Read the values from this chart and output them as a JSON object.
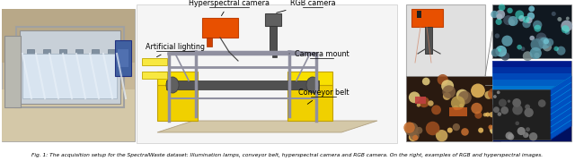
{
  "title": "Fig. 1: The acquisition setup for the SpectralWaste dataset: Illumination lamps, conveyor belt, hyperspectral camera and RGB camera. On the right, examples of RGB and hyperspectral images.",
  "background_color": "#ffffff",
  "labels": {
    "hyperspectral_camera": "Hyperspectral camera",
    "rgb_camera": "RGB camera",
    "artificial_lighting": "Artificial lighting",
    "camera_mount": "Camera mount",
    "conveyor_belt": "Conveyor belt"
  },
  "figsize": [
    6.4,
    1.8
  ],
  "dpi": 100,
  "caption_fontsize": 4.2,
  "annotation_fontsize": 5.8
}
